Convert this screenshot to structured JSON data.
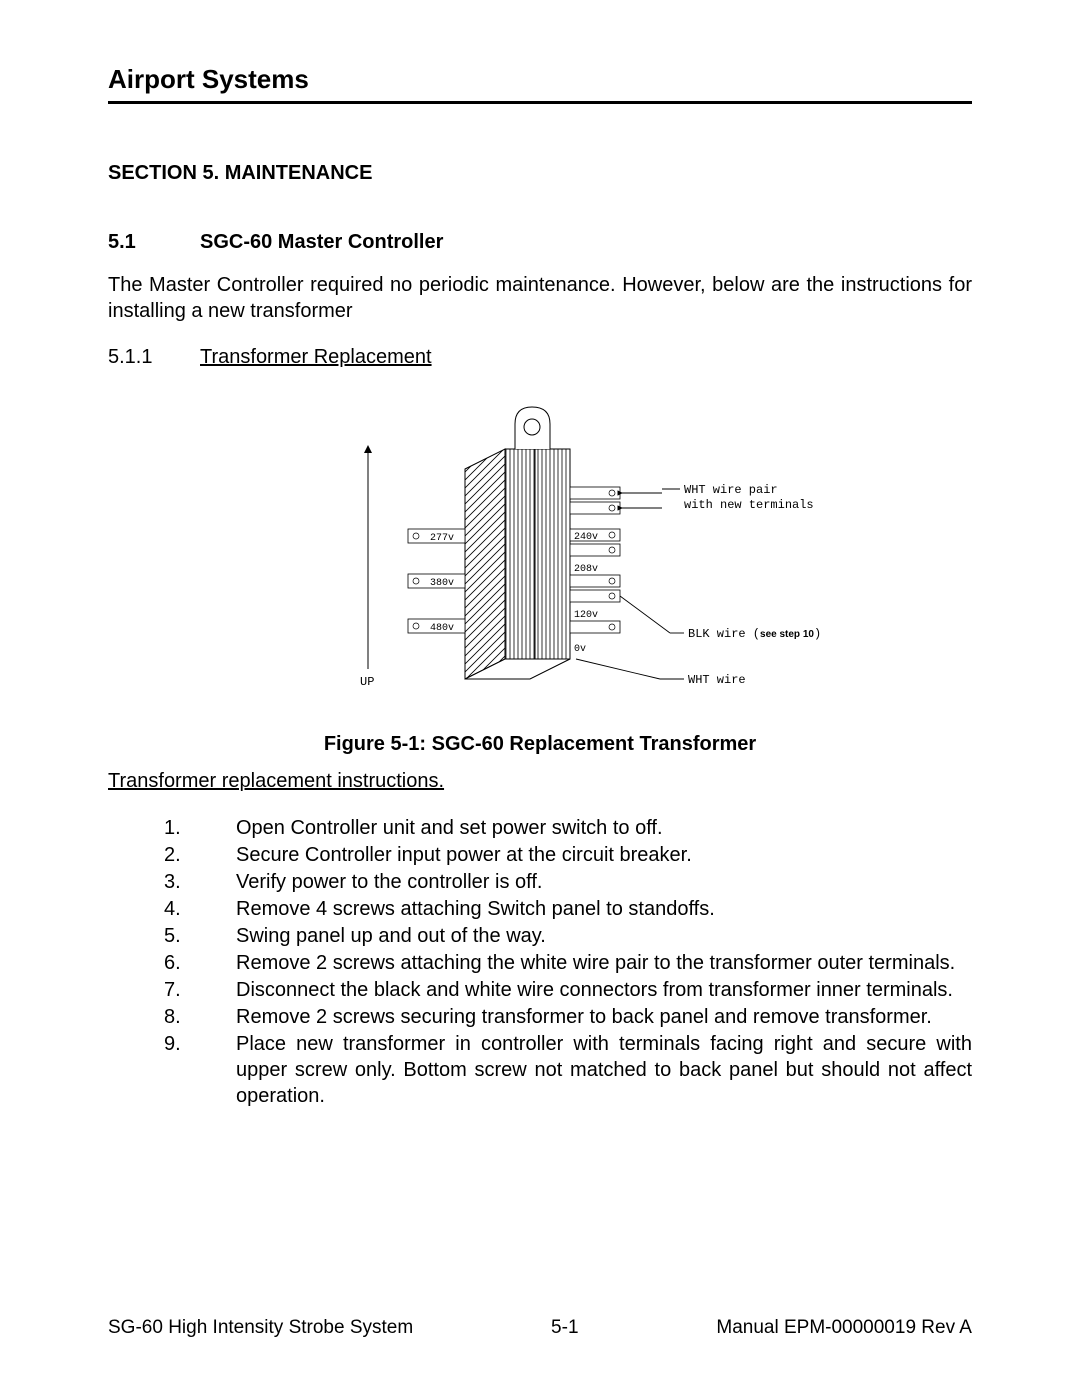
{
  "header": "Airport Systems",
  "section_title": "SECTION 5.  MAINTENANCE",
  "subsection": {
    "num": "5.1",
    "title": "SGC-60 Master Controller"
  },
  "intro_text": "The Master Controller required no periodic maintenance.  However, below are the instructions for installing a new transformer",
  "subsubsection": {
    "num": "5.1.1",
    "title": "Transformer Replacement"
  },
  "figure_caption": "Figure 5-1: SGC-60 Replacement Transformer",
  "instructions_title": "Transformer replacement instructions.",
  "steps": [
    {
      "n": "1.",
      "t": "Open Controller unit and set power switch to off."
    },
    {
      "n": "2.",
      "t": "Secure Controller input power at the circuit breaker."
    },
    {
      "n": "3.",
      "t": "Verify power to the controller is off."
    },
    {
      "n": "4.",
      "t": "Remove 4 screws attaching Switch panel to standoffs."
    },
    {
      "n": "5.",
      "t": "Swing panel up and out of the way."
    },
    {
      "n": "6.",
      "t": "Remove 2 screws attaching the white wire pair to the transformer outer terminals."
    },
    {
      "n": "7.",
      "t": "Disconnect the black and white wire connectors from transformer inner terminals."
    },
    {
      "n": "8.",
      "t": "Remove 2 screws securing transformer to back panel and remove transformer."
    },
    {
      "n": "9.",
      "t": "Place new transformer in controller with terminals facing right and secure with upper screw only.  Bottom screw not matched to back panel but should not affect operation."
    }
  ],
  "footer": {
    "left": "SG-60 High Intensity Strobe System",
    "center": "5-1",
    "right": "Manual EPM-00000019 Rev A"
  },
  "diagram": {
    "up_label": "UP",
    "left_voltages": [
      "277v",
      "380v",
      "480v"
    ],
    "right_voltages": [
      "240v",
      "208v",
      "120v",
      "0v"
    ],
    "callout1a": "WHT wire pair",
    "callout1b": "with new terminals",
    "callout2_pre": "BLK wire (",
    "callout2_bold": "see step 10",
    "callout2_post": ")",
    "callout3": "WHT wire",
    "stroke": "#000000",
    "hatch_stroke": "#000000"
  }
}
